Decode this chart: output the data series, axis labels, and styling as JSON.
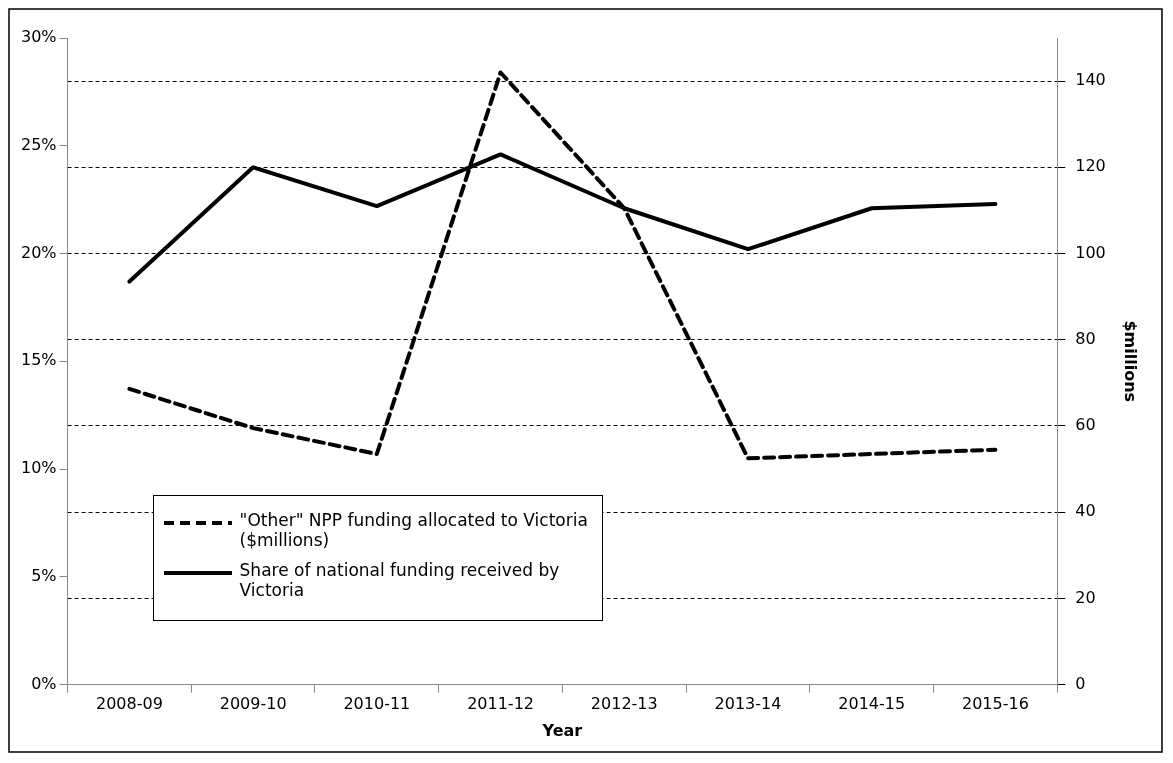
{
  "chart_data": {
    "type": "line",
    "xlabel": "Year",
    "y2label": "$millions",
    "categories": [
      "2008-09",
      "2009-10",
      "2010-11",
      "2011-12",
      "2012-13",
      "2013-14",
      "2014-15",
      "2015-16"
    ],
    "series": [
      {
        "name": "\"Other\" NPP funding allocated to Victoria ($millions)",
        "color": "#000000",
        "line_style": "dashed",
        "axis": "y2",
        "values": [
          68.6,
          59.5,
          53.5,
          142,
          110.5,
          52.5,
          53.5,
          54.5
        ]
      },
      {
        "name": "Share of national funding received by Victoria",
        "color": "#000000",
        "line_style": "solid",
        "values": [
          18.7,
          24.0,
          22.2,
          24.6,
          22.1,
          20.2,
          22.1,
          22.3
        ]
      }
    ],
    "ylim": [
      0,
      30
    ],
    "yticks": [
      {
        "value": 0,
        "label": "0%"
      },
      {
        "value": 5,
        "label": "5%"
      },
      {
        "value": 10,
        "label": "10%"
      },
      {
        "value": 15,
        "label": "15%"
      },
      {
        "value": 20,
        "label": "20%"
      },
      {
        "value": 25,
        "label": "25%"
      },
      {
        "value": 30,
        "label": "30%"
      }
    ],
    "y2lim": [
      0,
      150
    ],
    "y2ticks": [
      0,
      20,
      40,
      60,
      80,
      100,
      120,
      140
    ],
    "grid": "y2",
    "legend": "bottom left",
    "marker": "none"
  }
}
